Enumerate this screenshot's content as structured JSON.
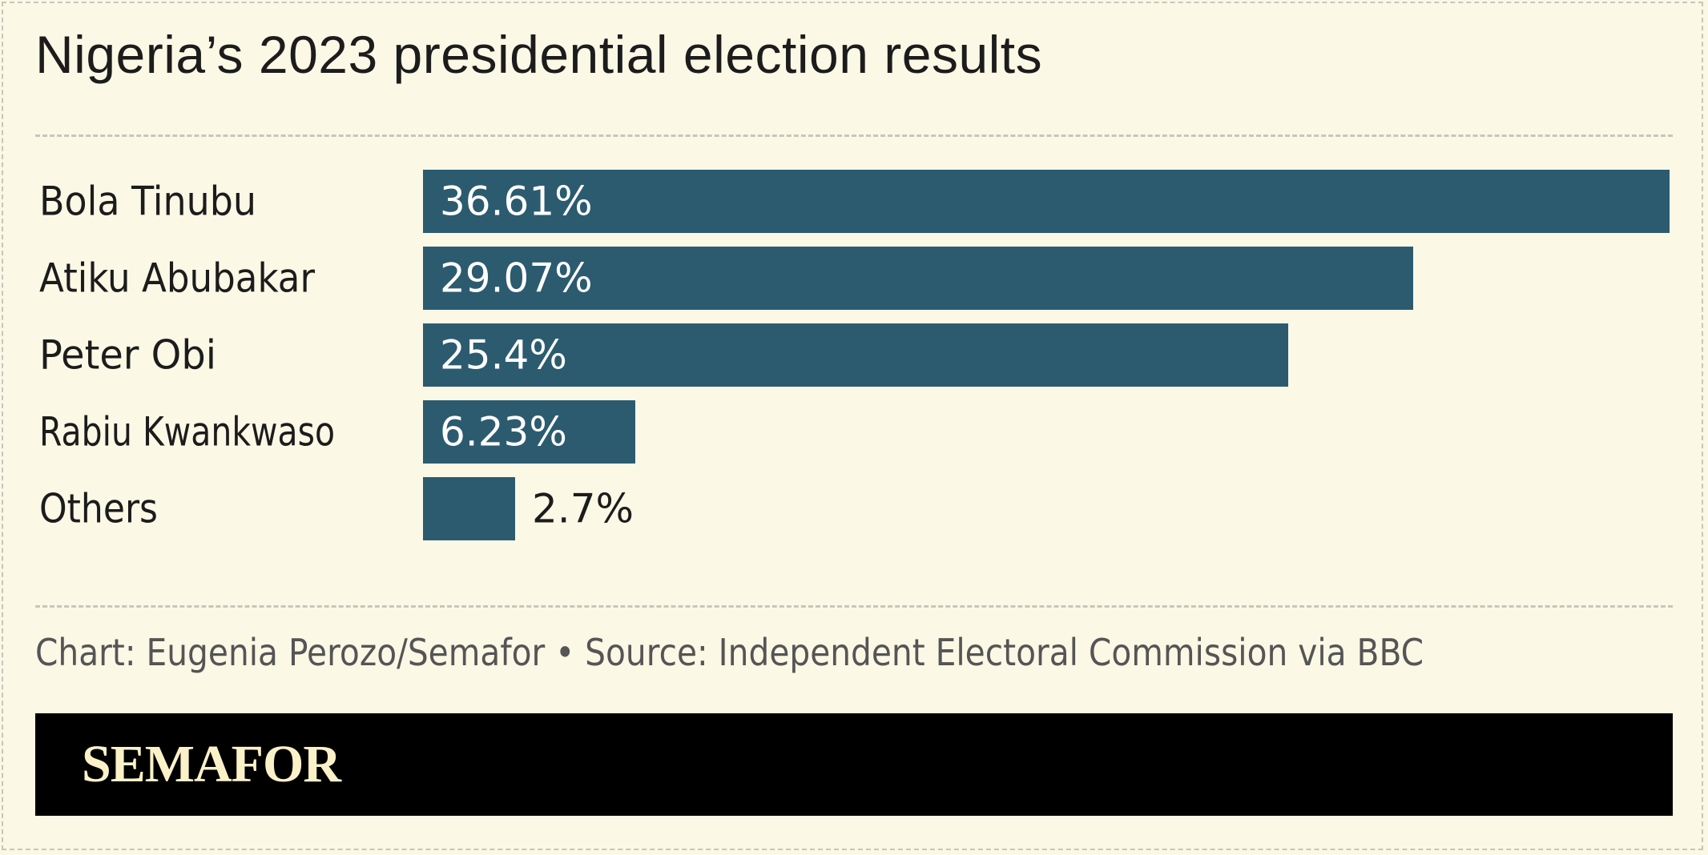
{
  "title": "Nigeria’s 2023 presidential election results",
  "credit": "Chart: Eugenia Perozo/Semafor • Source: Independent Electoral Commission via BBC",
  "brand": "SEMAFOR",
  "colors": {
    "background": "#fbf8e6",
    "bar": "#2c5b70",
    "text_dark": "#1c1c1c",
    "label_inside": "#ffffff",
    "footer": "#000000",
    "brand_text": "#fbf1c9"
  },
  "chart_data": {
    "type": "bar",
    "orientation": "horizontal",
    "categories": [
      "Bola Tinubu",
      "Atiku Abubakar",
      "Peter Obi",
      "Rabiu Kwankwaso",
      "Others"
    ],
    "values": [
      36.61,
      29.07,
      25.4,
      6.23,
      2.7
    ],
    "value_labels": [
      "36.61%",
      "29.07%",
      "25.4%",
      "6.23%",
      "2.7%"
    ],
    "unit": "%",
    "xlim": [
      0,
      36.61
    ],
    "grid": false,
    "legend": "none"
  }
}
